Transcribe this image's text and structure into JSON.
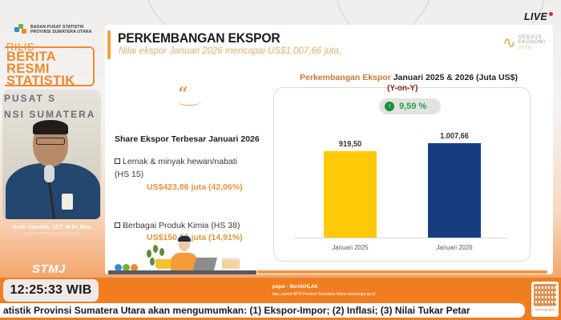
{
  "broadcast": {
    "live_label": "LIVE",
    "clock": "12:25:33 WIB",
    "ticker": "atistik Provinsi Sumatera Utara akan mengumumkan: (1) Ekspor-Impor; (2) Inflasi; (3) Nilai Tukar Petar",
    "partners_line1": "pojok · BerAKHLAK",
    "partners_line2": "bps_sumut   BPS Provinsi Sumatera Utara   sumut.bps.go.id",
    "qr_caption": "sumut.bps.go.id",
    "station_logo": "STMJ"
  },
  "branding": {
    "org_line1": "BADAN PUSAT STATISTIK",
    "org_line2": "PROVINSI SUMATERA UTARA",
    "rilis": "RILIS",
    "brs_line1": "BERITA",
    "brs_line2": "RESMI",
    "brs_line3": "STATISTIK",
    "accent_color": "#f08a2c"
  },
  "speaker": {
    "name": "Asim Saputra, SST. M.Ec.Dev.",
    "title": "Kepala BPS Provinsi Sumatera Utara",
    "backdrop_line1": "PUSAT S",
    "backdrop_line2": "NSI SUMATERA"
  },
  "slide": {
    "title": "PERKEMBANGAN EKSPOR",
    "subtitle": "Nilai ekspor Januari 2026 mencapai US$1.007,66 juta,",
    "sensus_logo": {
      "line1": "SENSUS",
      "line2": "EKONOMI",
      "line3": "2026"
    },
    "quote_mark": "“",
    "share_title": "Share Ekspor Terbesar Januari 2026",
    "items": [
      {
        "label_line1": "Lemak & minyak hewan/nabati",
        "label_line2": "(HS 15)",
        "value": "US$423,86 juta (42,06%)"
      },
      {
        "label_line1": "Berbagai Produk Kimia (HS 38)",
        "label_line2": "",
        "value": "US$150,29 juta (14,91%)"
      }
    ]
  },
  "chart_data": {
    "type": "bar",
    "title_accent": "Perkembangan Ekspor",
    "title_rest": "Januari 2025 & 2026 (Juta US$)",
    "subtitle": "(Y-on-Y)",
    "growth_label": "9,59 %",
    "growth_direction": "up",
    "categories": [
      "Januari 2025",
      "Januari 2026"
    ],
    "values": [
      919.5,
      1007.66
    ],
    "value_labels": [
      "919,50",
      "1.007,66"
    ],
    "colors": [
      "#ffc907",
      "#173d80"
    ],
    "xlabel": "",
    "ylabel": "Juta US$",
    "ylim": [
      0,
      1100
    ],
    "grid": false,
    "legend": "none"
  }
}
